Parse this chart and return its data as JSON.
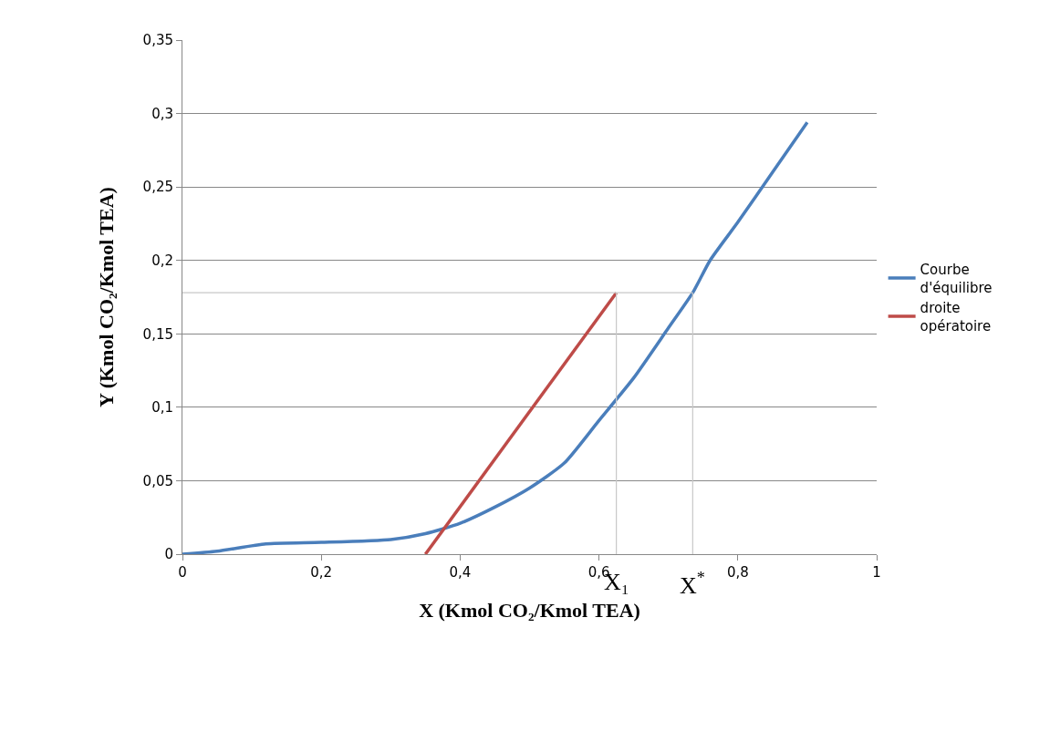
{
  "chart_data": {
    "type": "line",
    "xlabel": "X (Kmol CO₂/Kmol TEA)",
    "ylabel": "Y (Kmol CO₂/Kmol TEA)",
    "xlim": [
      0,
      1
    ],
    "xticks": [
      0,
      {
        "value": 0.2,
        "label": "0,2"
      },
      {
        "value": 0.4,
        "label": "0,4"
      },
      {
        "value": 0.6,
        "label": "0,6"
      },
      {
        "value": 0.8,
        "label": "0,8"
      },
      1
    ],
    "ylim": [
      0,
      0.35
    ],
    "yticks": [
      0,
      {
        "value": 0.05,
        "label": "0,05"
      },
      {
        "value": 0.1,
        "label": "0,1"
      },
      {
        "value": 0.15,
        "label": "0,15"
      },
      {
        "value": 0.2,
        "label": "0,2"
      },
      {
        "value": 0.25,
        "label": "0,25"
      },
      {
        "value": 0.3,
        "label": "0,3"
      },
      {
        "value": 0.35,
        "label": "0,35"
      }
    ],
    "grid": "y",
    "legend": "right",
    "series": [
      {
        "name": "Courbe d'équilibre",
        "color": "#4a7ebb",
        "x": [
          0,
          0.05,
          0.12,
          0.2,
          0.3,
          0.35,
          0.4,
          0.45,
          0.5,
          0.55,
          0.6,
          0.65,
          0.7,
          0.735,
          0.76,
          0.8,
          0.85,
          0.9
        ],
        "values": [
          0,
          0.002,
          0.007,
          0.008,
          0.01,
          0.014,
          0.021,
          0.032,
          0.045,
          0.062,
          0.091,
          0.12,
          0.154,
          0.178,
          0.2,
          0.226,
          0.26,
          0.294
        ]
      },
      {
        "name": "droite opératoire",
        "color": "#be4b48",
        "x": [
          0.35,
          0.625
        ],
        "values": [
          0,
          0.178
        ]
      },
      {
        "color": "#c8c8c8",
        "x": [
          0,
          0.735
        ],
        "values": [
          0.178,
          0.178
        ]
      },
      {
        "color": "#c8c8c8",
        "x": [
          0.625,
          0.625
        ],
        "values": [
          0,
          0.178
        ]
      },
      {
        "color": "#c8c8c8",
        "x": [
          0.735,
          0.735
        ],
        "values": [
          0,
          0.178
        ]
      }
    ],
    "annotations": [
      {
        "text": "X₁",
        "x": 0.625,
        "y": 0
      },
      {
        "text": "X$^{*}$",
        "x": 0.735,
        "y": 0
      }
    ]
  }
}
